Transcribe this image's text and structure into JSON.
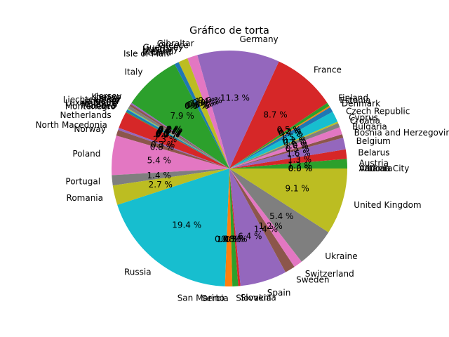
{
  "chart_data": {
    "type": "pie",
    "title": "Gráfico de torta",
    "start_angle_deg": 0,
    "direction": "counterclockwise",
    "colors": [
      "#1f77b4",
      "#ff7f0e",
      "#2ca02c",
      "#d62728",
      "#9467bd",
      "#8c564b",
      "#e377c2",
      "#7f7f7f",
      "#bcbd22",
      "#17becf"
    ],
    "slices": [
      {
        "label": "Albania",
        "value": 0.0,
        "pct": "0.0 %"
      },
      {
        "label": "Andorra",
        "value": 0.0,
        "pct": "0.0 %"
      },
      {
        "label": "Austria",
        "value": 1.3,
        "pct": "1.3 %"
      },
      {
        "label": "Belarus",
        "value": 1.3,
        "pct": "1.3 %"
      },
      {
        "label": "Belgium",
        "value": 1.6,
        "pct": "1.6 %"
      },
      {
        "label": "Bosnia and Herzegovina",
        "value": 0.5,
        "pct": "0.5 %"
      },
      {
        "label": "Bulgaria",
        "value": 1.0,
        "pct": "1.0 %"
      },
      {
        "label": "Croatia",
        "value": 0.6,
        "pct": "0.6 %"
      },
      {
        "label": "Cyprus",
        "value": 0.2,
        "pct": "0.2 %"
      },
      {
        "label": "Czech Republic",
        "value": 1.5,
        "pct": "1.5 %"
      },
      {
        "label": "Denmark",
        "value": 0.7,
        "pct": "0.7 %"
      },
      {
        "label": "Estonia",
        "value": 0.2,
        "pct": "0.2 %"
      },
      {
        "label": "Finland",
        "value": 0.5,
        "pct": "0.5 %"
      },
      {
        "label": "France",
        "value": 8.7,
        "pct": "8.7 %"
      },
      {
        "label": "Germany",
        "value": 11.3,
        "pct": "11.3 %"
      },
      {
        "label": "Gibraltar",
        "value": 0.0,
        "pct": "0.0 %"
      },
      {
        "label": "Greece",
        "value": 1.4,
        "pct": "1.4 %"
      },
      {
        "label": "Guernsey",
        "value": 0.0,
        "pct": "0.0 %"
      },
      {
        "label": "Hungary",
        "value": 1.3,
        "pct": "1.3 %"
      },
      {
        "label": "Iceland",
        "value": 0.0,
        "pct": "0.0 %"
      },
      {
        "label": "Ireland",
        "value": 0.6,
        "pct": "0.6 %"
      },
      {
        "label": "Isle of Man",
        "value": 0.0,
        "pct": "0.0 %"
      },
      {
        "label": "Italy",
        "value": 7.9,
        "pct": "7.9 %"
      },
      {
        "label": "Jersey",
        "value": 0.0,
        "pct": "0.0 %"
      },
      {
        "label": "Kosovo",
        "value": 0.2,
        "pct": "0.2 %"
      },
      {
        "label": "Latvia",
        "value": 0.3,
        "pct": "0.3 %"
      },
      {
        "label": "Liechtenstein",
        "value": 0.0,
        "pct": "0.0 %"
      },
      {
        "label": "Lithuania",
        "value": 0.4,
        "pct": "0.4 %"
      },
      {
        "label": "Luxembourg",
        "value": 0.1,
        "pct": "0.1 %"
      },
      {
        "label": "Malta",
        "value": 0.1,
        "pct": "0.1 %"
      },
      {
        "label": "Moldova",
        "value": 0.3,
        "pct": "0.3 %"
      },
      {
        "label": "Monaco",
        "value": 0.0,
        "pct": "0.0 %"
      },
      {
        "label": "Montenegro",
        "value": 0.1,
        "pct": "0.1 %"
      },
      {
        "label": "Netherlands",
        "value": 2.3,
        "pct": "2.3 %"
      },
      {
        "label": "North Macedonia",
        "value": 0.3,
        "pct": "0.3 %"
      },
      {
        "label": "Norway",
        "value": 0.8,
        "pct": "0.8 %"
      },
      {
        "label": "Poland",
        "value": 5.4,
        "pct": "5.4 %"
      },
      {
        "label": "Portugal",
        "value": 1.4,
        "pct": "1.4 %"
      },
      {
        "label": "Romania",
        "value": 2.7,
        "pct": "2.7 %"
      },
      {
        "label": "Russia",
        "value": 19.4,
        "pct": "19.4 %"
      },
      {
        "label": "San Marino",
        "value": 0.0,
        "pct": "0.0 %"
      },
      {
        "label": "Serbia",
        "value": 1.0,
        "pct": "1.0 %"
      },
      {
        "label": "Slovakia",
        "value": 0.8,
        "pct": "0.8 %"
      },
      {
        "label": "Slovenia",
        "value": 0.3,
        "pct": "0.3 %"
      },
      {
        "label": "Spain",
        "value": 6.4,
        "pct": "6.4 %"
      },
      {
        "label": "Sweden",
        "value": 1.4,
        "pct": "1.4 %"
      },
      {
        "label": "Switzerland",
        "value": 1.2,
        "pct": "1.2 %"
      },
      {
        "label": "Ukraine",
        "value": 5.4,
        "pct": "5.4 %"
      },
      {
        "label": "United Kingdom",
        "value": 9.1,
        "pct": "9.1 %"
      },
      {
        "label": "Vatican City",
        "value": 0.0,
        "pct": "0.0 %"
      }
    ]
  }
}
